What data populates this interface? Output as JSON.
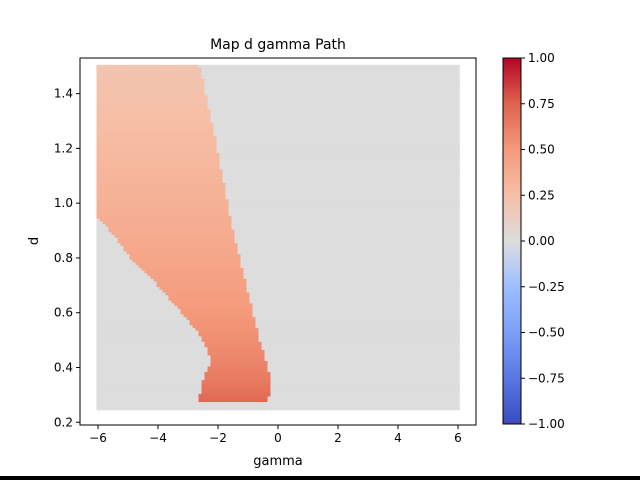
{
  "chart_data": {
    "type": "heatmap",
    "title": "Map d gamma Path",
    "xlabel": "gamma",
    "ylabel": "d",
    "xlim": [
      -6.6,
      6.6
    ],
    "ylim": [
      0.19,
      1.53
    ],
    "xticks": [
      -6,
      -4,
      -2,
      0,
      2,
      4,
      6
    ],
    "xtick_labels": [
      "−6",
      "−4",
      "−2",
      "0",
      "2",
      "4",
      "6"
    ],
    "yticks": [
      0.2,
      0.4,
      0.6,
      0.8,
      1.0,
      1.2,
      1.4
    ],
    "ytick_labels": [
      "0.2",
      "0.4",
      "0.6",
      "0.8",
      "1.0",
      "1.2",
      "1.4"
    ],
    "grid": false,
    "colormap": "coolwarm",
    "clim": [
      -1,
      1
    ],
    "colorbar_ticks": [
      1.0,
      0.75,
      0.5,
      0.25,
      0.0,
      -0.25,
      -0.5,
      -0.75,
      -1.0
    ],
    "colorbar_tick_labels": [
      "1.00",
      "0.75",
      "0.50",
      "0.25",
      "0.00",
      "−0.25",
      "−0.50",
      "−0.75",
      "−1.00"
    ],
    "grid_extent": {
      "gamma": [
        -6,
        6
      ],
      "d": [
        0.25,
        1.5
      ]
    },
    "region_boundary": {
      "left_edge": [
        {
          "d": 0.25,
          "gamma": null
        },
        {
          "d": 0.3,
          "gamma": -2.6
        },
        {
          "d": 0.34,
          "gamma": -2.55
        },
        {
          "d": 0.38,
          "gamma": -2.4
        },
        {
          "d": 0.42,
          "gamma": -2.25
        },
        {
          "d": 0.47,
          "gamma": -2.35
        },
        {
          "d": 0.52,
          "gamma": -2.6
        },
        {
          "d": 0.6,
          "gamma": -3.2
        },
        {
          "d": 0.7,
          "gamma": -4.0
        },
        {
          "d": 0.8,
          "gamma": -4.9
        },
        {
          "d": 0.9,
          "gamma": -5.6
        },
        {
          "d": 0.95,
          "gamma": -6.0
        },
        {
          "d": 1.5,
          "gamma": -6.0
        }
      ],
      "right_edge": [
        {
          "d": 0.29,
          "gamma": -0.3
        },
        {
          "d": 0.35,
          "gamma": -0.2
        },
        {
          "d": 0.5,
          "gamma": -0.6
        },
        {
          "d": 0.7,
          "gamma": -1.05
        },
        {
          "d": 0.9,
          "gamma": -1.5
        },
        {
          "d": 1.1,
          "gamma": -1.85
        },
        {
          "d": 1.3,
          "gamma": -2.2
        },
        {
          "d": 1.5,
          "gamma": -2.6
        }
      ],
      "value_top": 0.2,
      "value_bottom": 0.8
    },
    "background_value": 0.0
  }
}
